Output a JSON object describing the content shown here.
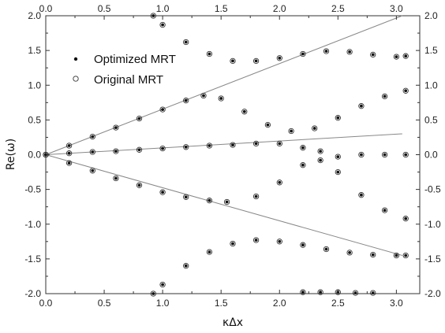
{
  "chart_data": {
    "type": "scatter",
    "xlabel": "κΔx",
    "ylabel": "Re(ω)",
    "xlim": [
      0,
      3.2
    ],
    "ylim": [
      -2,
      2
    ],
    "x_ticks": [
      "0.0",
      "0.5",
      "1.0",
      "1.5",
      "2.0",
      "2.5",
      "3.0"
    ],
    "y_ticks": [
      "-2.0",
      "-1.5",
      "-1.0",
      "-0.5",
      "0.0",
      "0.5",
      "1.0",
      "1.5",
      "2.0"
    ],
    "legend": {
      "position": "top-left"
    },
    "colors": {
      "line": "#888888",
      "marker": "#111111",
      "frame": "#333333"
    },
    "series": [
      {
        "name": "Optimized MRT",
        "marker": "filled-dot",
        "branches": [
          {
            "x": [
              0.0,
              0.2,
              0.4,
              0.6,
              0.8,
              1.0,
              1.2,
              1.35,
              1.5,
              1.7,
              1.9,
              2.1,
              2.3,
              2.5,
              2.7,
              2.9,
              3.08
            ],
            "y": [
              0.0,
              0.13,
              0.26,
              0.39,
              0.52,
              0.65,
              0.78,
              0.85,
              0.81,
              0.62,
              0.43,
              0.34,
              0.38,
              0.53,
              0.7,
              0.84,
              0.92
            ]
          },
          {
            "x": [
              0.0,
              0.2,
              0.4,
              0.6,
              0.8,
              1.0,
              1.2,
              1.4,
              1.6,
              1.8,
              2.0,
              2.2,
              2.35,
              2.5,
              2.7,
              2.9,
              3.08
            ],
            "y": [
              0.0,
              0.02,
              0.04,
              0.05,
              0.07,
              0.09,
              0.11,
              0.13,
              0.14,
              0.16,
              0.16,
              0.1,
              -0.08,
              -0.03,
              0.0,
              0.0,
              0.0
            ]
          },
          {
            "x": [
              0.0,
              0.2,
              0.4,
              0.6,
              0.8,
              1.0,
              1.2,
              1.4,
              1.55,
              1.8,
              2.0,
              2.2,
              2.35,
              2.5,
              2.7,
              2.9,
              3.08
            ],
            "y": [
              0.0,
              -0.12,
              -0.23,
              -0.34,
              -0.44,
              -0.54,
              -0.61,
              -0.66,
              -0.68,
              -0.6,
              -0.4,
              -0.15,
              0.05,
              -0.25,
              -0.58,
              -0.8,
              -0.92
            ]
          },
          {
            "x": [
              0.92,
              1.0,
              1.2,
              1.4,
              1.6,
              1.8,
              2.0,
              2.2,
              2.4,
              2.6,
              2.8,
              3.0,
              3.08
            ],
            "y": [
              2.0,
              1.87,
              1.62,
              1.45,
              1.35,
              1.35,
              1.39,
              1.45,
              1.49,
              1.48,
              1.44,
              1.41,
              1.42
            ]
          },
          {
            "x": [
              0.92,
              1.0,
              1.2,
              1.4,
              1.6,
              1.8,
              2.0,
              2.2,
              2.4,
              2.6,
              2.8,
              3.0,
              3.08
            ],
            "y": [
              -2.0,
              -1.87,
              -1.6,
              -1.4,
              -1.28,
              -1.23,
              -1.25,
              -1.3,
              -1.36,
              -1.41,
              -1.44,
              -1.45,
              -1.45
            ]
          },
          {
            "x": [
              2.2,
              2.35,
              2.5,
              2.65,
              2.8
            ],
            "y": [
              -1.98,
              -1.98,
              -1.98,
              -1.99,
              -1.99
            ]
          }
        ]
      },
      {
        "name": "Original MRT",
        "marker": "open-circle"
      }
    ],
    "lines": [
      {
        "x": [
          0,
          3.05
        ],
        "y": [
          0,
          2.0
        ]
      },
      {
        "x": [
          0,
          3.05
        ],
        "y": [
          0,
          0.3
        ]
      },
      {
        "x": [
          0,
          3.05
        ],
        "y": [
          0,
          -1.45
        ]
      }
    ]
  }
}
